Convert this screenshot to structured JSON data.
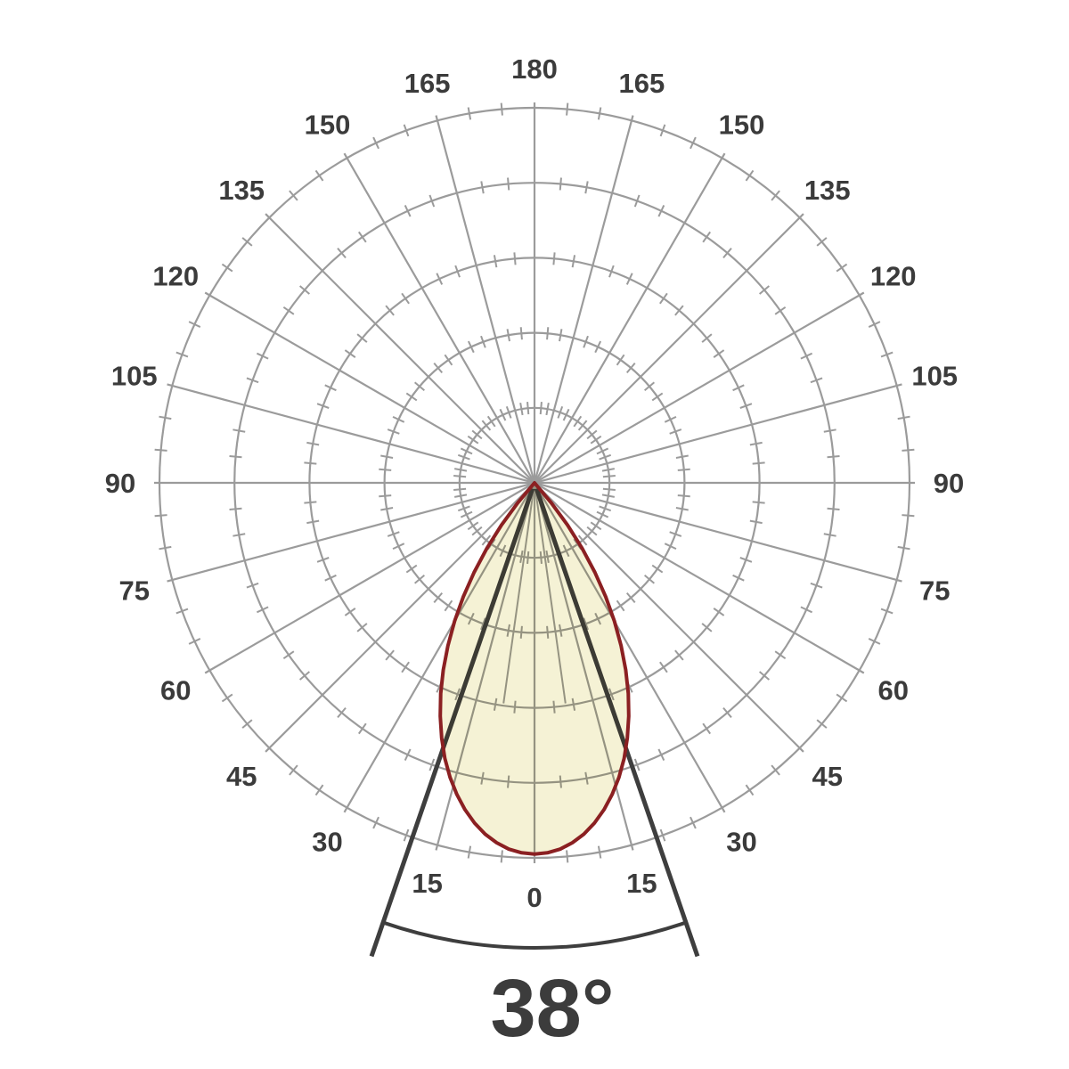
{
  "page": {
    "background_color": "#ffffff"
  },
  "chart_data": {
    "type": "polar",
    "subtype": "luminous-intensity-distribution",
    "title": "",
    "orientation": {
      "zero_deg_position": "bottom",
      "max_deg": 180,
      "mirrored_left_right": true
    },
    "grid": {
      "ring_count": 5,
      "major_angle_step_deg": 15,
      "minor_tick_step_deg": 5,
      "grid_on": true
    },
    "angle_tick_labels": [
      "0",
      "15",
      "30",
      "45",
      "60",
      "75",
      "90",
      "105",
      "120",
      "135",
      "150",
      "165",
      "180"
    ],
    "beam": {
      "label": "38°",
      "beam_angle_deg": 38,
      "half_beam_angle_deg": 19,
      "peak_at_deg": 0,
      "peak_radius_ratio": 0.99,
      "inner_guide_angle_deg": 8,
      "curve_r_over_outer": [
        [
          0,
          0.99
        ],
        [
          2,
          0.987
        ],
        [
          4,
          0.979
        ],
        [
          6,
          0.965
        ],
        [
          8,
          0.946
        ],
        [
          10,
          0.921
        ],
        [
          12,
          0.891
        ],
        [
          14,
          0.856
        ],
        [
          16,
          0.817
        ],
        [
          18,
          0.773
        ],
        [
          20,
          0.724
        ],
        [
          22,
          0.671
        ],
        [
          24,
          0.615
        ],
        [
          26,
          0.555
        ],
        [
          28,
          0.492
        ],
        [
          30,
          0.426
        ],
        [
          32,
          0.358
        ],
        [
          34,
          0.288
        ],
        [
          36,
          0.216
        ],
        [
          38,
          0.143
        ],
        [
          40,
          0.069
        ],
        [
          41.86,
          0.0
        ]
      ]
    },
    "colors": {
      "grid": "#9b9b9b",
      "angle_label": "#3b3b3b",
      "beam_fill": "#f5f2d5",
      "beam_outline": "#8b2022",
      "beam_indicator": "#3e3e3e",
      "beam_angle_label": "#3c3c3c",
      "background": "#ffffff"
    }
  }
}
